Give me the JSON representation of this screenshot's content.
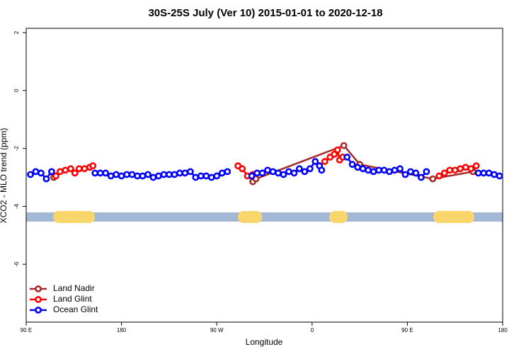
{
  "chart_data": {
    "type": "line",
    "title": "30S-25S July (Ver 10)   2015-01-01 to 2020-12-18",
    "x_label": "Longitude",
    "y_label": "XCO2 - MLO trend (ppm)",
    "xlim": [
      90,
      540
    ],
    "ylim": [
      -8,
      2.15
    ],
    "xticks": [
      {
        "value": 90,
        "label": "90 E"
      },
      180,
      {
        "value": 270,
        "label": "90 W"
      },
      {
        "value": 360,
        "label": "0"
      },
      {
        "value": 450,
        "label": "90 E"
      },
      {
        "value": 540,
        "label": "180"
      }
    ],
    "yticks": [
      2,
      0,
      -2,
      -4,
      -6
    ],
    "legend": "bottom-left",
    "series": [
      {
        "name": "Land Nadir",
        "color": "#a52a2a",
        "x": [
          116,
          301,
          304,
          307,
          390,
          405,
          474,
          512
        ],
        "values": [
          -3.0,
          null,
          -3.15,
          -3.05,
          -1.9,
          -2.55,
          -3.05,
          -2.8
        ]
      },
      {
        "name": "Land Glint",
        "color": "#ff0000",
        "x": [
          118,
          122,
          127,
          132,
          136,
          140,
          145,
          150,
          153,
          284,
          290,
          294,
          299,
          304,
          367,
          372,
          377,
          381,
          384,
          386,
          389,
          476,
          480,
          485,
          490,
          495,
          500,
          505,
          510,
          515
        ],
        "values": [
          -2.95,
          -2.8,
          -2.75,
          -2.7,
          -2.85,
          -2.7,
          -2.7,
          -2.65,
          -2.6,
          null,
          -2.6,
          -2.7,
          -2.95,
          -2.9,
          null,
          -2.45,
          -2.3,
          -2.2,
          -2.05,
          -2.4,
          -2.3,
          null,
          -2.95,
          -2.85,
          -2.75,
          -2.75,
          -2.7,
          -2.65,
          -2.7,
          -2.6
        ]
      },
      {
        "name": "Ocean Glint",
        "color": "#0000ff",
        "x": [
          94,
          99,
          104,
          109,
          114,
          118,
          155,
          160,
          165,
          170,
          175,
          180,
          185,
          190,
          195,
          200,
          205,
          210,
          215,
          220,
          225,
          230,
          235,
          240,
          245,
          250,
          255,
          260,
          265,
          270,
          275,
          280,
          285,
          303,
          308,
          313,
          318,
          323,
          328,
          333,
          338,
          343,
          348,
          353,
          358,
          363,
          367,
          369,
          370,
          393,
          398,
          403,
          408,
          413,
          418,
          423,
          428,
          433,
          438,
          443,
          448,
          453,
          458,
          463,
          468,
          473,
          517,
          522,
          527,
          532,
          537
        ],
        "values": [
          -2.9,
          -2.8,
          -2.85,
          -3.05,
          -2.8,
          null,
          -2.85,
          -2.85,
          -2.85,
          -2.95,
          -2.9,
          -2.95,
          -2.9,
          -2.9,
          -2.95,
          -2.95,
          -2.9,
          -3.0,
          -2.95,
          -2.9,
          -2.9,
          -2.9,
          -2.85,
          -2.85,
          -2.8,
          -3.0,
          -2.95,
          -2.95,
          -3.0,
          -2.95,
          -2.85,
          -2.8,
          null,
          -2.95,
          -2.85,
          -2.85,
          -2.75,
          -2.8,
          -2.85,
          -2.9,
          -2.8,
          -2.85,
          -2.7,
          -2.8,
          -2.7,
          -2.45,
          -2.6,
          -2.75,
          null,
          -2.3,
          -2.55,
          -2.65,
          -2.7,
          -2.75,
          -2.8,
          -2.75,
          -2.75,
          -2.8,
          -2.75,
          -2.7,
          -2.9,
          -2.8,
          -2.85,
          -3.0,
          -2.8,
          null,
          -2.85,
          -2.85,
          -2.85,
          -2.9,
          -2.95
        ]
      }
    ]
  }
}
